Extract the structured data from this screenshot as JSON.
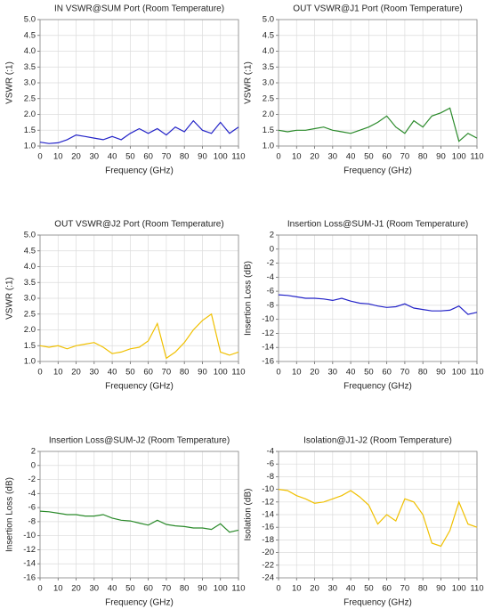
{
  "chart_data": [
    {
      "type": "line",
      "title": "IN VSWR@SUM Port (Room Temperature)",
      "xlabel": "Frequency (GHz)",
      "ylabel": "VSWR (:1)",
      "color": "#2323c8",
      "x": [
        0,
        5,
        10,
        15,
        20,
        25,
        30,
        35,
        40,
        45,
        50,
        55,
        60,
        65,
        70,
        75,
        80,
        85,
        90,
        95,
        100,
        105,
        110
      ],
      "values": [
        1.12,
        1.08,
        1.1,
        1.2,
        1.35,
        1.3,
        1.25,
        1.2,
        1.3,
        1.2,
        1.4,
        1.55,
        1.4,
        1.55,
        1.35,
        1.6,
        1.45,
        1.8,
        1.5,
        1.4,
        1.75,
        1.4,
        1.6
      ],
      "xlim": [
        0,
        110
      ],
      "xticks": [
        0,
        10,
        20,
        30,
        40,
        50,
        60,
        70,
        80,
        90,
        100,
        110
      ],
      "ylim": [
        1,
        5
      ],
      "yticks": [
        {
          "value": 1,
          "label": "1.0"
        },
        1.5,
        {
          "value": 2,
          "label": "2.0"
        },
        2.5,
        {
          "value": 3,
          "label": "3.0"
        },
        3.5,
        {
          "value": 4,
          "label": "4.0"
        },
        4.5,
        {
          "value": 5,
          "label": "5.0"
        }
      ],
      "grid": true
    },
    {
      "type": "line",
      "title": "OUT VSWR@J1 Port (Room Temperature)",
      "xlabel": "Frequency (GHz)",
      "ylabel": "VSWR (:1)",
      "color": "#2a8a2a",
      "x": [
        0,
        5,
        10,
        15,
        20,
        25,
        30,
        35,
        40,
        45,
        50,
        55,
        60,
        65,
        70,
        75,
        80,
        85,
        90,
        95,
        100,
        105,
        110
      ],
      "values": [
        1.5,
        1.45,
        1.5,
        1.5,
        1.55,
        1.6,
        1.5,
        1.45,
        1.4,
        1.5,
        1.6,
        1.75,
        1.95,
        1.6,
        1.4,
        1.8,
        1.6,
        1.95,
        2.05,
        2.2,
        1.15,
        1.4,
        1.25
      ],
      "xlim": [
        0,
        110
      ],
      "xticks": [
        0,
        10,
        20,
        30,
        40,
        50,
        60,
        70,
        80,
        90,
        100,
        110
      ],
      "ylim": [
        1,
        5
      ],
      "yticks": [
        {
          "value": 1,
          "label": "1.0"
        },
        1.5,
        {
          "value": 2,
          "label": "2.0"
        },
        2.5,
        {
          "value": 3,
          "label": "3.0"
        },
        3.5,
        {
          "value": 4,
          "label": "4.0"
        },
        4.5,
        {
          "value": 5,
          "label": "5.0"
        }
      ],
      "grid": true
    },
    {
      "type": "line",
      "title": "OUT VSWR@J2 Port (Room Temperature)",
      "xlabel": "Frequency (GHz)",
      "ylabel": "VSWR (:1)",
      "color": "#f0c000",
      "x": [
        0,
        5,
        10,
        15,
        20,
        25,
        30,
        35,
        40,
        45,
        50,
        55,
        60,
        65,
        70,
        75,
        80,
        85,
        90,
        95,
        100,
        105,
        110
      ],
      "values": [
        1.5,
        1.45,
        1.5,
        1.4,
        1.5,
        1.55,
        1.6,
        1.45,
        1.25,
        1.3,
        1.4,
        1.45,
        1.65,
        2.2,
        1.1,
        1.3,
        1.6,
        2.0,
        2.3,
        2.5,
        1.3,
        1.2,
        1.3
      ],
      "xlim": [
        0,
        110
      ],
      "xticks": [
        0,
        10,
        20,
        30,
        40,
        50,
        60,
        70,
        80,
        90,
        100,
        110
      ],
      "ylim": [
        1,
        5
      ],
      "yticks": [
        {
          "value": 1,
          "label": "1.0"
        },
        1.5,
        {
          "value": 2,
          "label": "2.0"
        },
        2.5,
        {
          "value": 3,
          "label": "3.0"
        },
        3.5,
        {
          "value": 4,
          "label": "4.0"
        },
        4.5,
        {
          "value": 5,
          "label": "5.0"
        }
      ],
      "grid": true
    },
    {
      "type": "line",
      "title": "Insertion Loss@SUM-J1 (Room Temperature)",
      "xlabel": "Frequency (GHz)",
      "ylabel": "Insertion Loss (dB)",
      "color": "#2323c8",
      "x": [
        0,
        5,
        10,
        15,
        20,
        25,
        30,
        35,
        40,
        45,
        50,
        55,
        60,
        65,
        70,
        75,
        80,
        85,
        90,
        95,
        100,
        105,
        110
      ],
      "values": [
        -6.5,
        -6.6,
        -6.8,
        -7,
        -7,
        -7.1,
        -7.3,
        -7,
        -7.4,
        -7.7,
        -7.8,
        -8.1,
        -8.3,
        -8.2,
        -7.8,
        -8.4,
        -8.6,
        -8.8,
        -8.8,
        -8.7,
        -8.1,
        -9.3,
        -9
      ],
      "xlim": [
        0,
        110
      ],
      "xticks": [
        0,
        10,
        20,
        30,
        40,
        50,
        60,
        70,
        80,
        90,
        100,
        110
      ],
      "ylim": [
        -16,
        2
      ],
      "yticks": [
        -16,
        -14,
        -12,
        -10,
        -8,
        -6,
        -4,
        -2,
        0,
        2
      ],
      "grid": true
    },
    {
      "type": "line",
      "title": "Insertion Loss@SUM-J2 (Room Temperature)",
      "xlabel": "Frequency (GHz)",
      "ylabel": "Insertion Loss (dB)",
      "color": "#2a8a2a",
      "x": [
        0,
        5,
        10,
        15,
        20,
        25,
        30,
        35,
        40,
        45,
        50,
        55,
        60,
        65,
        70,
        75,
        80,
        85,
        90,
        95,
        100,
        105,
        110
      ],
      "values": [
        -6.5,
        -6.6,
        -6.8,
        -7,
        -7,
        -7.2,
        -7.2,
        -7,
        -7.5,
        -7.8,
        -7.9,
        -8.2,
        -8.5,
        -7.8,
        -8.4,
        -8.6,
        -8.7,
        -8.9,
        -8.9,
        -9.1,
        -8.3,
        -9.5,
        -9.2
      ],
      "xlim": [
        0,
        110
      ],
      "xticks": [
        0,
        10,
        20,
        30,
        40,
        50,
        60,
        70,
        80,
        90,
        100,
        110
      ],
      "ylim": [
        -16,
        2
      ],
      "yticks": [
        -16,
        -14,
        -12,
        -10,
        -8,
        -6,
        -4,
        -2,
        0,
        2
      ],
      "grid": true
    },
    {
      "type": "line",
      "title": "Isolation@J1-J2 (Room Temperature)",
      "xlabel": "Frequency (GHz)",
      "ylabel": "Isolation (dB)",
      "color": "#f0c000",
      "x": [
        0,
        5,
        10,
        15,
        20,
        25,
        30,
        35,
        40,
        45,
        50,
        55,
        60,
        65,
        70,
        75,
        80,
        85,
        90,
        95,
        100,
        105,
        110
      ],
      "values": [
        -10,
        -10.2,
        -11,
        -11.5,
        -12.2,
        -12,
        -11.5,
        -11,
        -10.2,
        -11.2,
        -12.5,
        -15.5,
        -14,
        -15,
        -11.5,
        -12,
        -14,
        -18.5,
        -19,
        -16.5,
        -12,
        -15.5,
        -16
      ],
      "xlim": [
        0,
        110
      ],
      "xticks": [
        0,
        10,
        20,
        30,
        40,
        50,
        60,
        70,
        80,
        90,
        100,
        110
      ],
      "ylim": [
        -24,
        -4
      ],
      "yticks": [
        -24,
        -22,
        -20,
        -18,
        -16,
        -14,
        -12,
        -10,
        -8,
        -6,
        -4
      ],
      "grid": true
    }
  ]
}
